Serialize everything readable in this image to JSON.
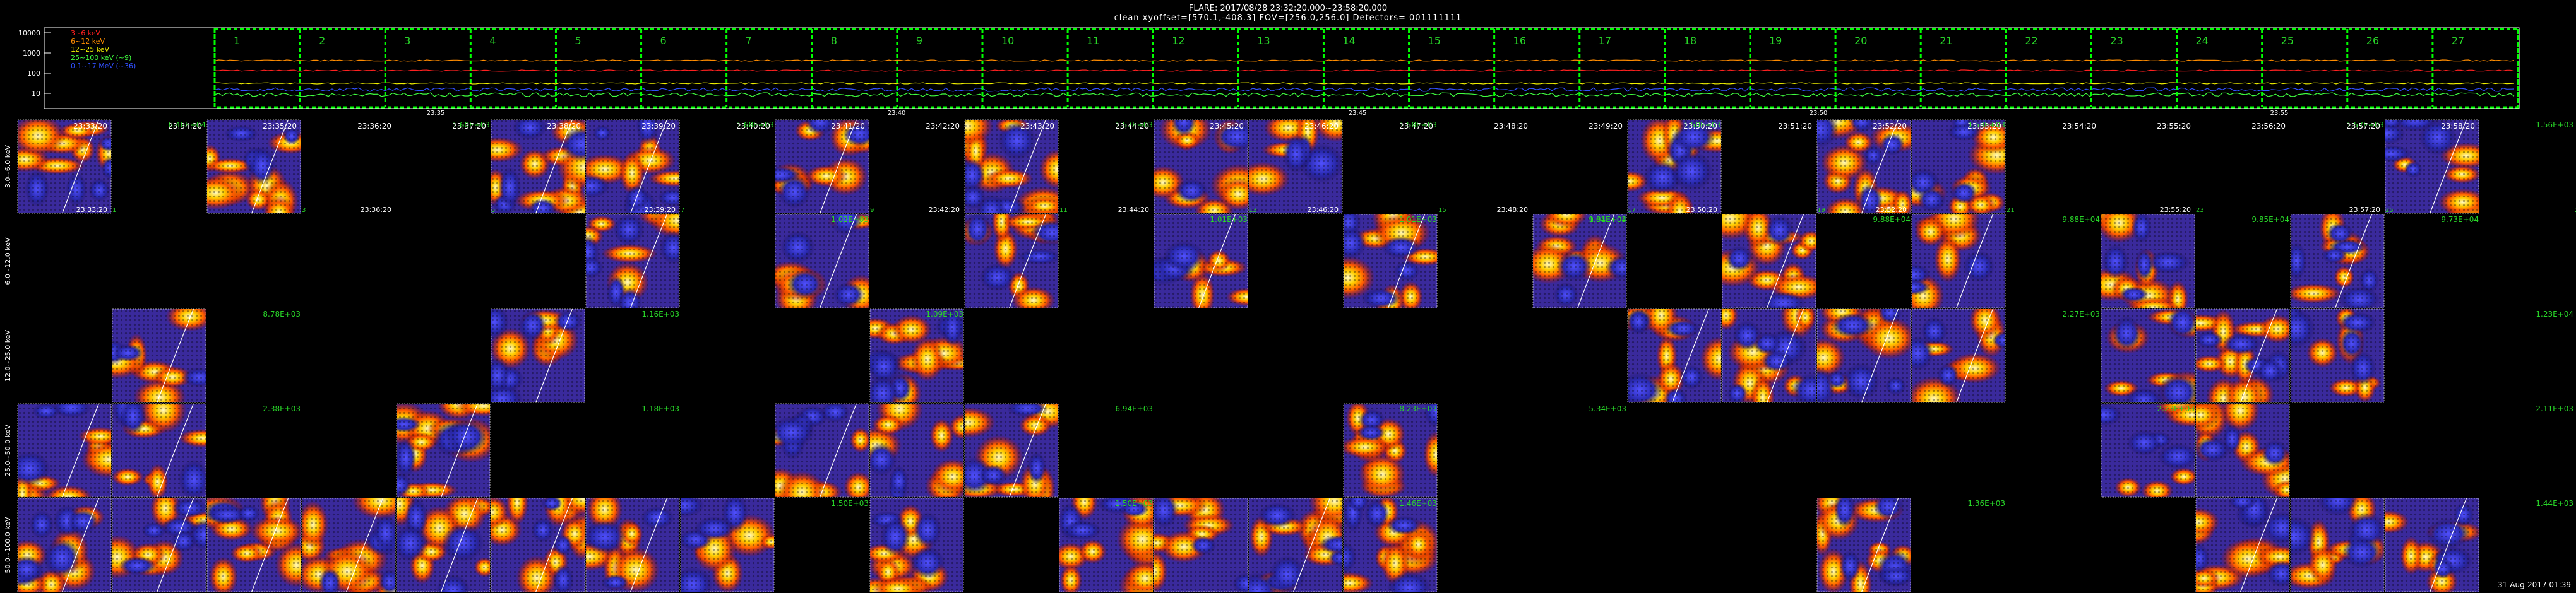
{
  "header": {
    "line1": "FLARE: 2017/08/28 23:32:20.000~23:58:20.000",
    "line2": "clean    xyoffset=[570.1,-408.3]    FOV=[256.0,256.0]    Detectors= 001111111"
  },
  "lightcurve": {
    "y_ticks": [
      "10000",
      "1000",
      "100",
      "10"
    ],
    "legend": [
      {
        "text": "3~6 keV",
        "color": "#ff2020"
      },
      {
        "text": "6~12 keV",
        "color": "#ff8c00"
      },
      {
        "text": "12~25 keV",
        "color": "#f0f000"
      },
      {
        "text": "25~100 keV (~9)",
        "color": "#40ff40"
      },
      {
        "text": "0.1~17 MeV (~36)",
        "color": "#3050ff"
      }
    ],
    "interval_numbers": [
      "1",
      "2",
      "3",
      "4",
      "5",
      "6",
      "7",
      "8",
      "9",
      "10",
      "11",
      "12",
      "13",
      "14",
      "15",
      "16",
      "17",
      "18",
      "19",
      "20",
      "21",
      "22",
      "23",
      "24",
      "25",
      "26",
      "27"
    ],
    "time_ticks": [
      "23:35",
      "23:40",
      "23:45",
      "23:50",
      "23:55"
    ]
  },
  "row_labels": [
    "3.0~6.0 keV",
    "6.0~12.0 keV",
    "12.0~25.0 keV",
    "25.0~50.0 keV",
    "50.0~100.0 keV"
  ],
  "row0_times": [
    "23:33:20",
    "23:34:20",
    "23:35:20",
    "23:36:20",
    "23:37:20",
    "23:38:20",
    "23:39:20",
    "23:40:20",
    "23:41:20",
    "23:42:20",
    "23:43:20",
    "23:44:20",
    "23:45:20",
    "23:46:20",
    "23:47:20",
    "23:48:20",
    "23:49:20",
    "23:50:20",
    "23:51:20",
    "23:52:20",
    "23:53:20",
    "23:54:20",
    "23:55:20",
    "23:56:20",
    "23:57:20",
    "23:58:20"
  ],
  "peaks": {
    "r0": [
      "6.46E+04",
      "1.60E+03",
      "1.68E+03",
      "1.57E+03",
      "1.58E+03",
      "1.50E+03",
      "1.53E+03",
      "1.57E+03",
      "1.56E+03"
    ],
    "r1": [
      "1.02E+03",
      "1.01E+03",
      "1.01E+03",
      "1.01E+03",
      "9.84E+04",
      "9.88E+04",
      "9.88E+04",
      "9.85E+04",
      "9.73E+04",
      "9.68E+04"
    ],
    "r2": [
      "8.78E+03",
      "1.16E+03",
      "1.09E+03",
      "2.27E+03",
      "1.23E+04"
    ],
    "r3": [
      "2.38E+03",
      "1.18E+03",
      "6.94E+03",
      "8.23E+03",
      "5.34E+03",
      "2.23E+03",
      "2.11E+03"
    ],
    "r4": [
      "1.50E+03",
      "1.50E+03",
      "1.46E+03",
      "1.36E+03",
      "1.44E+03"
    ]
  },
  "footer": "31-Aug-2017 01:39",
  "colors": {
    "bg": "#000000",
    "grid": "#00ff00",
    "label_green": "#28d428"
  }
}
